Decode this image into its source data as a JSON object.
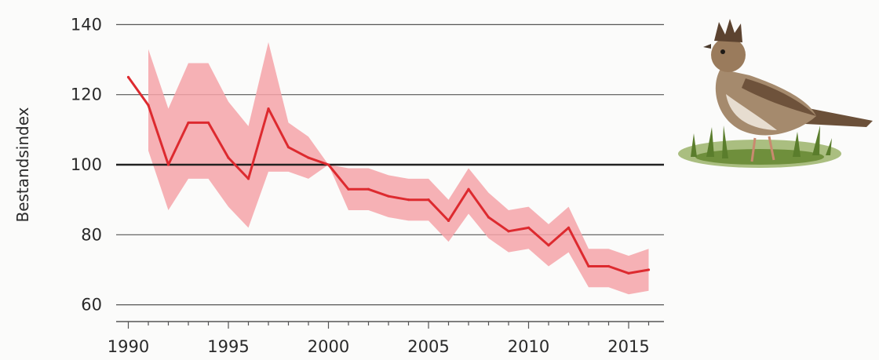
{
  "chart_data": {
    "type": "line",
    "title": "",
    "xlabel": "",
    "ylabel": "Bestandsindex",
    "xlim": [
      1989,
      2017
    ],
    "ylim": [
      57,
      143
    ],
    "xticks": [
      1990,
      1995,
      2000,
      2005,
      2010,
      2015
    ],
    "yticks": [
      60,
      80,
      100,
      120,
      140
    ],
    "reference_line": 100,
    "grid": true,
    "legend": "none",
    "series": [
      {
        "x": [
          1990,
          1991,
          1992,
          1993,
          1994,
          1995,
          1996,
          1997,
          1998,
          1999,
          2000,
          2001,
          2002,
          2003,
          2004,
          2005,
          2006,
          2007,
          2008,
          2009,
          2010,
          2011,
          2012,
          2013,
          2014,
          2015,
          2016
        ],
        "y": [
          125,
          117,
          100,
          112,
          112,
          102,
          96,
          116,
          105,
          102,
          100,
          93,
          93,
          91,
          90,
          90,
          84,
          93,
          85,
          81,
          82,
          77,
          82,
          71,
          71,
          69,
          70
        ],
        "lower": [
          null,
          104,
          87,
          96,
          96,
          88,
          82,
          98,
          98,
          96,
          100,
          87,
          87,
          85,
          84,
          84,
          78,
          86,
          79,
          75,
          76,
          71,
          75,
          65,
          65,
          63,
          64
        ],
        "upper": [
          null,
          133,
          116,
          129,
          129,
          118,
          111,
          135,
          112,
          108,
          100,
          99,
          99,
          97,
          96,
          96,
          90,
          99,
          92,
          87,
          88,
          83,
          88,
          76,
          76,
          74,
          76
        ]
      }
    ],
    "colors": {
      "line": "#dd2a2f",
      "band": "#f4a3a8",
      "reference": "#222222",
      "grid": "#555555"
    }
  },
  "illustration": {
    "icon": "skylark-bird-illustration"
  }
}
